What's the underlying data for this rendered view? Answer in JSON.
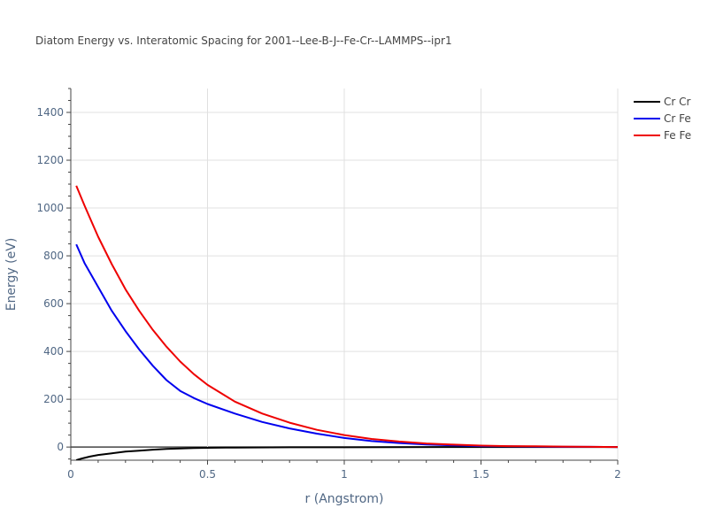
{
  "chart_data": {
    "type": "line",
    "title": "Diatom Energy vs. Interatomic Spacing for 2001--Lee-B-J--Fe-Cr--LAMMPS--ipr1",
    "xlabel": "r (Angstrom)",
    "ylabel": "Energy (eV)",
    "xlim": [
      0,
      2
    ],
    "ylim": [
      -55,
      1500
    ],
    "x_ticks": [
      0,
      0.5,
      1,
      1.5,
      2
    ],
    "x_tick_labels": [
      "0",
      "0.5",
      "1",
      "1.5",
      "2"
    ],
    "y_ticks": [
      0,
      200,
      400,
      600,
      800,
      1000,
      1200,
      1400
    ],
    "y_tick_labels": [
      "0",
      "200",
      "400",
      "600",
      "800",
      "1000",
      "1200",
      "1400"
    ],
    "grid": true,
    "legend_position": "top-right",
    "series": [
      {
        "name": "Cr Cr",
        "color": "#000000",
        "x": [
          0.02,
          0.04,
          0.07,
          0.1,
          0.15,
          0.2,
          0.25,
          0.3,
          0.35,
          0.4,
          0.45,
          0.5,
          0.6,
          0.8,
          1.0,
          1.5,
          2.0
        ],
        "y": [
          -55,
          -48,
          -40,
          -33,
          -26,
          -19,
          -15,
          -11,
          -8,
          -6,
          -4,
          -3,
          -2,
          -1,
          -1,
          0,
          0
        ]
      },
      {
        "name": "Cr Fe",
        "color": "#0000ee",
        "x": [
          0.02,
          0.05,
          0.1,
          0.15,
          0.2,
          0.25,
          0.3,
          0.35,
          0.4,
          0.45,
          0.5,
          0.6,
          0.7,
          0.8,
          0.9,
          1.0,
          1.1,
          1.2,
          1.3,
          1.4,
          1.5,
          1.6,
          1.7,
          1.8,
          1.9,
          2.0
        ],
        "y": [
          848,
          770,
          670,
          570,
          485,
          408,
          340,
          280,
          235,
          205,
          180,
          140,
          105,
          78,
          56,
          38,
          25,
          17,
          11,
          7,
          4,
          3,
          2,
          1,
          1,
          0
        ]
      },
      {
        "name": "Fe Fe",
        "color": "#ee0000",
        "x": [
          0.02,
          0.05,
          0.1,
          0.15,
          0.2,
          0.25,
          0.3,
          0.35,
          0.4,
          0.45,
          0.5,
          0.6,
          0.7,
          0.8,
          0.9,
          1.0,
          1.1,
          1.2,
          1.3,
          1.4,
          1.5,
          1.6,
          1.7,
          1.8,
          1.9,
          2.0
        ],
        "y": [
          1093,
          1010,
          880,
          765,
          660,
          570,
          490,
          420,
          358,
          305,
          260,
          190,
          140,
          102,
          72,
          50,
          34,
          23,
          15,
          10,
          6,
          4,
          3,
          2,
          1,
          0
        ]
      }
    ]
  }
}
